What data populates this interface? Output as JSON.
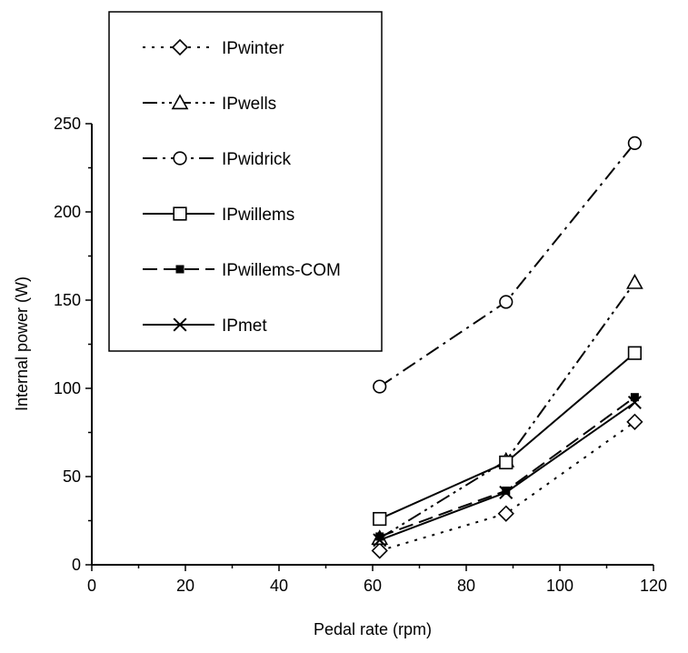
{
  "chart_data": {
    "type": "line",
    "title": "",
    "xlabel": "Pedal rate (rpm)",
    "ylabel": "Internal power (W)",
    "xlim": [
      0,
      120
    ],
    "ylim": [
      0,
      250
    ],
    "x_ticks": [
      0,
      20,
      40,
      60,
      80,
      100,
      120
    ],
    "y_ticks": [
      0,
      50,
      100,
      150,
      200,
      250
    ],
    "x_tick_labels": [
      "0",
      "20",
      "40",
      "60",
      "80",
      "100",
      "120"
    ],
    "y_tick_labels": [
      "0",
      "50",
      "100",
      "150",
      "200",
      "250"
    ],
    "grid": false,
    "legend_position": "top-left",
    "series": [
      {
        "name": "IPwinter",
        "marker": "diamond-open",
        "line": "dotted",
        "x": [
          61.5,
          88.5,
          116
        ],
        "values": [
          8,
          29,
          81
        ]
      },
      {
        "name": "IPwells",
        "marker": "triangle-open",
        "line": "dash-dot-dot",
        "x": [
          61.5,
          88.5,
          116
        ],
        "values": [
          15,
          59,
          160
        ]
      },
      {
        "name": "IPwidrick",
        "marker": "circle-open",
        "line": "dash-dot",
        "x": [
          61.5,
          88.5,
          116
        ],
        "values": [
          101,
          149,
          239
        ]
      },
      {
        "name": "IPwillems",
        "marker": "square-open",
        "line": "solid",
        "x": [
          61.5,
          88.5,
          116
        ],
        "values": [
          26,
          58,
          120
        ]
      },
      {
        "name": "IPwillems-COM",
        "marker": "square-filled",
        "line": "dashed",
        "x": [
          61.5,
          88.5,
          116
        ],
        "values": [
          16,
          42,
          95
        ]
      },
      {
        "name": "IPmet",
        "marker": "x",
        "line": "solid",
        "x": [
          61.5,
          88.5,
          116
        ],
        "values": [
          14,
          41,
          92
        ]
      }
    ]
  },
  "colors": {
    "line": "#000000",
    "background": "#ffffff"
  }
}
